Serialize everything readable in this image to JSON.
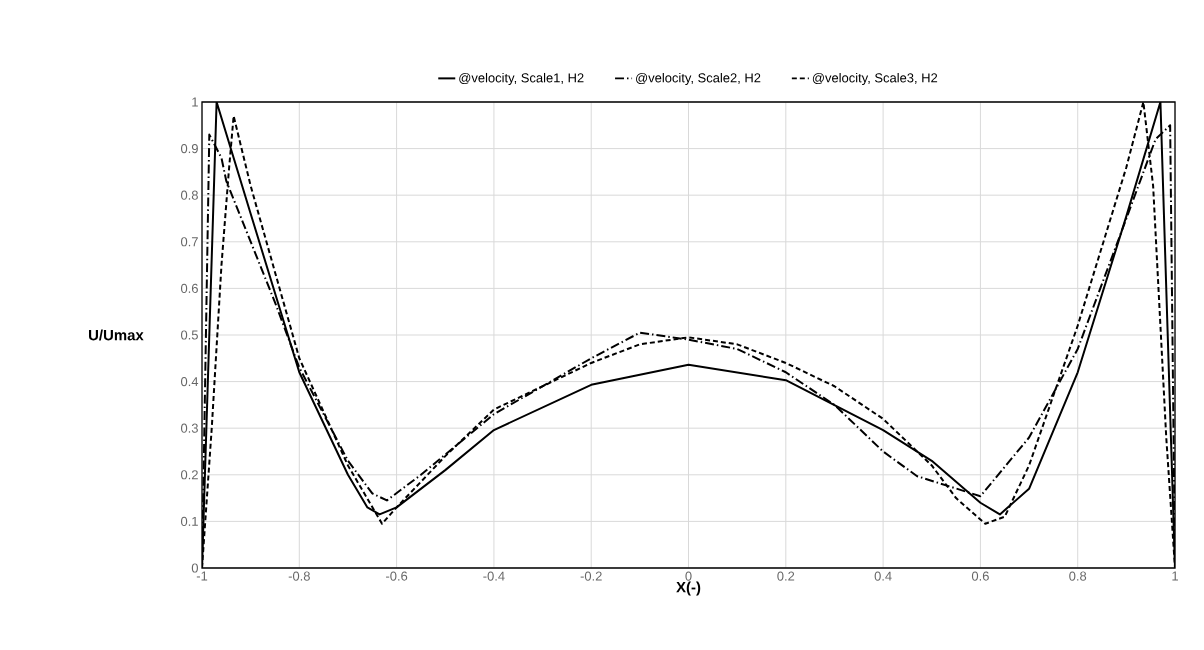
{
  "chart_data": {
    "type": "line",
    "xlabel": "X(-)",
    "ylabel": "U/Umax",
    "xlim": [
      -1,
      1
    ],
    "ylim": [
      0,
      1
    ],
    "xticks": [
      -1,
      -0.8,
      -0.6,
      -0.4,
      -0.2,
      0,
      0.2,
      0.4,
      0.6,
      0.8,
      1
    ],
    "yticks": [
      0,
      0.1,
      0.2,
      0.3,
      0.4,
      0.5,
      0.6,
      0.7,
      0.8,
      0.9,
      1
    ],
    "grid": true,
    "legend": "top",
    "marker": "none",
    "series": [
      {
        "name": "@velocity, Scale1, H2",
        "color": "#000000",
        "line_style": "solid",
        "x": [
          -1,
          -0.97,
          -0.9,
          -0.8,
          -0.7,
          -0.66,
          -0.635,
          -0.6,
          -0.5,
          -0.4,
          -0.2,
          0,
          0.2,
          0.4,
          0.5,
          0.6,
          0.64,
          0.7,
          0.8,
          0.9,
          0.97,
          1
        ],
        "values": [
          0,
          1,
          0.76,
          0.42,
          0.2,
          0.13,
          0.115,
          0.13,
          0.21,
          0.296,
          0.393,
          0.436,
          0.403,
          0.296,
          0.23,
          0.14,
          0.115,
          0.17,
          0.42,
          0.755,
          1,
          0
        ]
      },
      {
        "name": "@velocity, Scale2, H2",
        "color": "#000000",
        "line_style": "dashdot",
        "x": [
          -1,
          -0.985,
          -0.96,
          -0.95,
          -0.9,
          -0.85,
          -0.8,
          -0.7,
          -0.65,
          -0.62,
          -0.55,
          -0.4,
          -0.2,
          -0.1,
          0,
          0.1,
          0.2,
          0.3,
          0.4,
          0.47,
          0.6,
          0.7,
          0.8,
          0.9,
          0.96,
          0.99,
          1
        ],
        "values": [
          0,
          0.93,
          0.88,
          0.83,
          0.7,
          0.57,
          0.43,
          0.23,
          0.16,
          0.145,
          0.2,
          0.33,
          0.45,
          0.505,
          0.49,
          0.47,
          0.42,
          0.35,
          0.25,
          0.197,
          0.154,
          0.28,
          0.47,
          0.75,
          0.92,
          0.95,
          0
        ]
      },
      {
        "name": "@velocity, Scale3, H2",
        "color": "#000000",
        "line_style": "dashed",
        "x": [
          -1,
          -0.98,
          -0.96,
          -0.945,
          -0.935,
          -0.9,
          -0.8,
          -0.7,
          -0.63,
          -0.6,
          -0.5,
          -0.4,
          -0.2,
          -0.1,
          0,
          0.1,
          0.2,
          0.3,
          0.4,
          0.5,
          0.55,
          0.61,
          0.65,
          0.7,
          0.8,
          0.9,
          0.935,
          0.955,
          0.982,
          1
        ],
        "values": [
          0,
          0.3,
          0.65,
          0.85,
          0.97,
          0.82,
          0.45,
          0.22,
          0.095,
          0.13,
          0.24,
          0.34,
          0.44,
          0.48,
          0.495,
          0.48,
          0.44,
          0.39,
          0.32,
          0.22,
          0.15,
          0.095,
          0.11,
          0.22,
          0.52,
          0.86,
          1,
          0.82,
          0.28,
          0
        ]
      }
    ]
  }
}
